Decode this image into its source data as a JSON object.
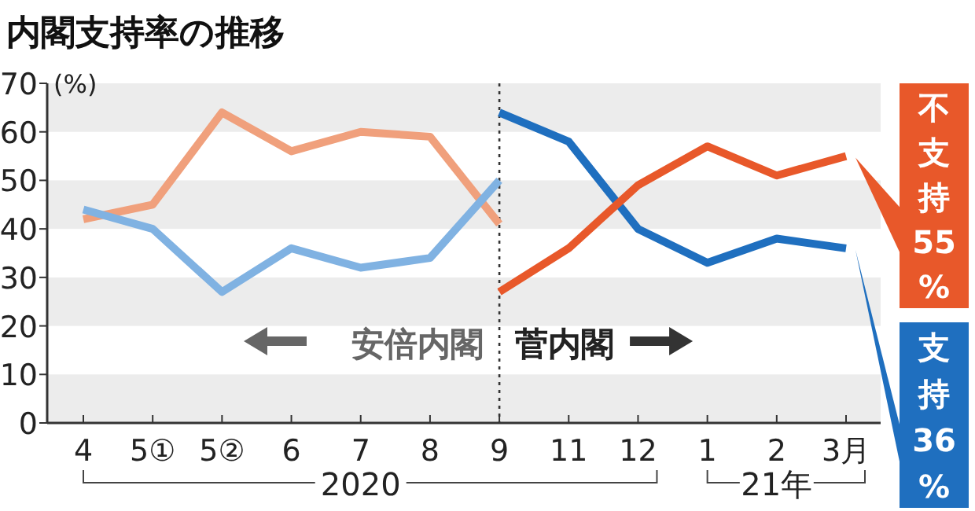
{
  "chart_data": {
    "type": "line",
    "title": "内閣支持率の推移",
    "ylabel": "(%)",
    "categories": [
      "4",
      "5①",
      "5②",
      "6",
      "7",
      "8",
      "9",
      "11",
      "12",
      "1",
      "2",
      "3月"
    ],
    "series": [
      {
        "color": "#f0a07c",
        "values": [
          42,
          45,
          64,
          56,
          60,
          59,
          41,
          null,
          null,
          null,
          null,
          null
        ]
      },
      {
        "color": "#80b2e2",
        "values": [
          44,
          40,
          27,
          36,
          32,
          34,
          50,
          null,
          null,
          null,
          null,
          null
        ]
      },
      {
        "color": "#1f6fbf",
        "values": [
          null,
          null,
          null,
          null,
          null,
          null,
          64,
          58,
          40,
          33,
          38,
          36
        ]
      },
      {
        "color": "#e8582a",
        "values": [
          null,
          null,
          null,
          null,
          null,
          null,
          27,
          36,
          49,
          57,
          51,
          55
        ]
      }
    ],
    "ylim": [
      0,
      70
    ],
    "yticks": [
      0,
      10,
      20,
      30,
      40,
      50,
      60,
      70
    ],
    "bands": [
      {
        "axis": "y",
        "from": 0,
        "to": 10,
        "color": "#ececec"
      },
      {
        "axis": "y",
        "from": 20,
        "to": 30,
        "color": "#ececec"
      },
      {
        "axis": "y",
        "from": 40,
        "to": 50,
        "color": "#ececec"
      },
      {
        "axis": "y",
        "from": 60,
        "to": 70,
        "color": "#ececec"
      }
    ],
    "ref_lines": [
      {
        "axis": "x",
        "value": "9",
        "line_style": "dotted",
        "color": "#333333"
      }
    ],
    "annotations": [
      "安倍内閣",
      "菅内閣",
      {
        "text": "不支持55%",
        "x": "3月",
        "y": 55
      },
      {
        "text": "支持36%",
        "x": "3月",
        "y": 36
      },
      "2020",
      "21年"
    ],
    "grid": false,
    "marker": "none",
    "line_style": "solid"
  }
}
